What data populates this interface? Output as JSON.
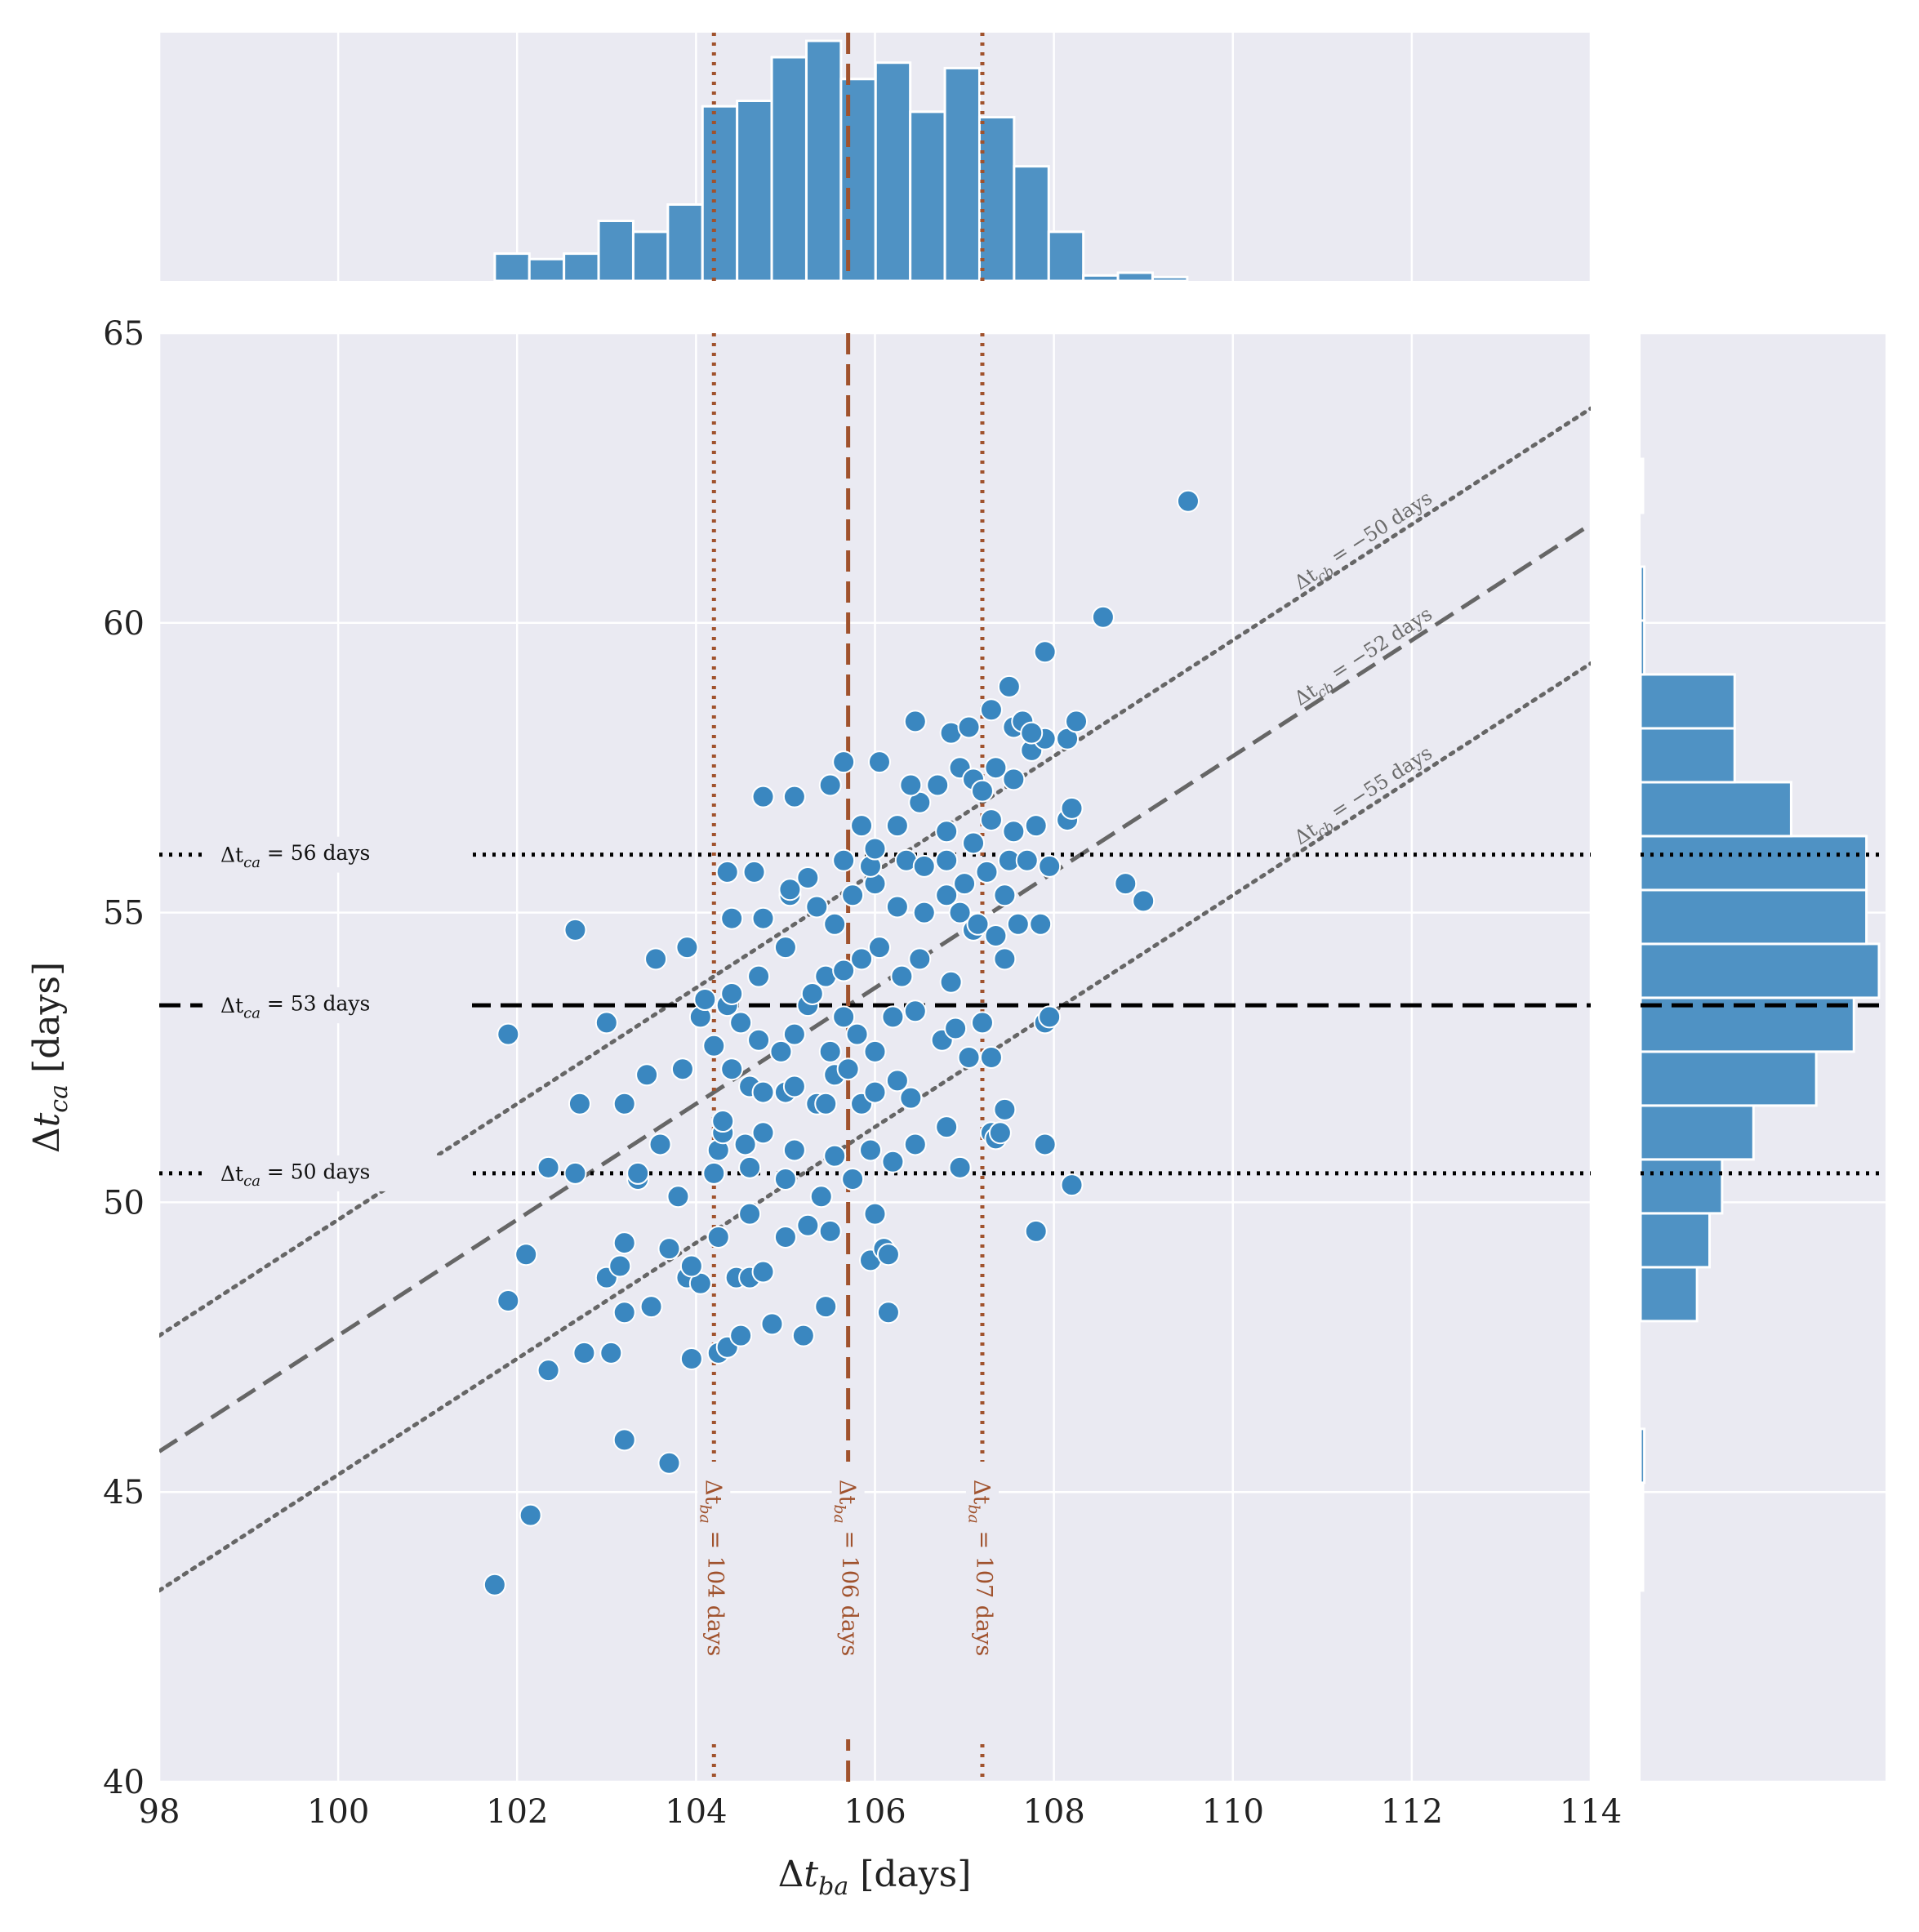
{
  "colors": {
    "background": "#eaeaf2",
    "grid": "#ffffff",
    "points": "#3a87c0",
    "bars": "#4f92c4",
    "vertical_lines": "#a0522d",
    "horizontal_lines": "#000000",
    "diagonal_lines": "#666666"
  },
  "chart_data": [
    {
      "type": "scatter",
      "xlabel": "Δt_ba [days]",
      "ylabel": "Δt_ca [days]",
      "xlim": [
        98,
        114
      ],
      "ylim": [
        40,
        65
      ],
      "x_ticks": [
        "98",
        "100",
        "102",
        "104",
        "106",
        "108",
        "110",
        "112",
        "114"
      ],
      "y_ticks": [
        "40",
        "45",
        "50",
        "55",
        "60",
        "65"
      ],
      "grid": true,
      "points": [
        [
          101.75,
          43.4
        ],
        [
          102.15,
          44.6
        ],
        [
          103.2,
          45.9
        ],
        [
          103.7,
          45.5
        ],
        [
          102.35,
          47.1
        ],
        [
          102.75,
          47.4
        ],
        [
          103.05,
          47.4
        ],
        [
          103.5,
          48.2
        ],
        [
          103.95,
          47.3
        ],
        [
          104.25,
          47.4
        ],
        [
          104.35,
          47.5
        ],
        [
          104.5,
          47.7
        ],
        [
          104.85,
          47.9
        ],
        [
          105.2,
          47.7
        ],
        [
          105.45,
          48.2
        ],
        [
          106.15,
          48.1
        ],
        [
          103.0,
          48.7
        ],
        [
          103.2,
          48.1
        ],
        [
          103.9,
          48.7
        ],
        [
          104.05,
          48.6
        ],
        [
          104.45,
          48.7
        ],
        [
          104.6,
          48.7
        ],
        [
          104.75,
          48.8
        ],
        [
          101.9,
          48.3
        ],
        [
          102.1,
          49.1
        ],
        [
          103.15,
          48.9
        ],
        [
          103.2,
          49.3
        ],
        [
          103.7,
          49.2
        ],
        [
          103.95,
          48.9
        ],
        [
          104.25,
          49.4
        ],
        [
          104.6,
          49.8
        ],
        [
          105.0,
          49.4
        ],
        [
          105.25,
          49.6
        ],
        [
          105.5,
          49.5
        ],
        [
          105.95,
          49.0
        ],
        [
          106.1,
          49.2
        ],
        [
          106.15,
          49.1
        ],
        [
          106.0,
          49.8
        ],
        [
          107.8,
          49.5
        ],
        [
          108.2,
          50.3
        ],
        [
          103.35,
          50.4
        ],
        [
          103.35,
          50.5
        ],
        [
          103.8,
          50.1
        ],
        [
          102.35,
          50.6
        ],
        [
          102.65,
          50.5
        ],
        [
          104.2,
          50.5
        ],
        [
          104.25,
          50.9
        ],
        [
          104.3,
          51.2
        ],
        [
          104.55,
          51.0
        ],
        [
          104.6,
          50.6
        ],
        [
          104.75,
          51.2
        ],
        [
          105.0,
          50.4
        ],
        [
          105.1,
          50.9
        ],
        [
          105.4,
          50.1
        ],
        [
          105.55,
          50.8
        ],
        [
          105.75,
          50.4
        ],
        [
          105.95,
          50.9
        ],
        [
          106.2,
          50.7
        ],
        [
          106.45,
          51.0
        ],
        [
          106.95,
          50.6
        ],
        [
          107.9,
          51.0
        ],
        [
          102.7,
          51.7
        ],
        [
          103.2,
          51.7
        ],
        [
          103.45,
          52.2
        ],
        [
          103.6,
          51.0
        ],
        [
          104.3,
          51.4
        ],
        [
          104.4,
          52.3
        ],
        [
          104.6,
          52.0
        ],
        [
          104.75,
          51.9
        ],
        [
          105.0,
          51.9
        ],
        [
          105.1,
          52.0
        ],
        [
          105.35,
          51.7
        ],
        [
          105.45,
          51.7
        ],
        [
          105.55,
          52.2
        ],
        [
          105.7,
          52.3
        ],
        [
          105.85,
          51.7
        ],
        [
          106.0,
          51.9
        ],
        [
          106.25,
          52.1
        ],
        [
          106.4,
          51.8
        ],
        [
          106.8,
          51.3
        ],
        [
          107.3,
          51.2
        ],
        [
          107.35,
          51.1
        ],
        [
          107.4,
          51.2
        ],
        [
          107.45,
          51.6
        ],
        [
          101.9,
          52.9
        ],
        [
          103.0,
          53.1
        ],
        [
          103.85,
          52.3
        ],
        [
          104.05,
          53.2
        ],
        [
          104.2,
          52.7
        ],
        [
          104.35,
          53.4
        ],
        [
          104.5,
          53.1
        ],
        [
          104.7,
          52.8
        ],
        [
          104.95,
          52.6
        ],
        [
          105.1,
          52.9
        ],
        [
          105.25,
          53.4
        ],
        [
          105.5,
          52.6
        ],
        [
          105.65,
          53.2
        ],
        [
          105.8,
          52.9
        ],
        [
          106.0,
          52.6
        ],
        [
          106.2,
          53.2
        ],
        [
          106.45,
          53.3
        ],
        [
          106.75,
          52.8
        ],
        [
          106.9,
          53.0
        ],
        [
          107.05,
          52.5
        ],
        [
          107.2,
          53.1
        ],
        [
          107.3,
          52.5
        ],
        [
          107.9,
          53.1
        ],
        [
          107.95,
          53.2
        ],
        [
          104.1,
          53.5
        ],
        [
          104.4,
          53.6
        ],
        [
          104.7,
          53.9
        ],
        [
          105.0,
          54.4
        ],
        [
          105.3,
          53.6
        ],
        [
          105.45,
          53.9
        ],
        [
          105.65,
          54.0
        ],
        [
          105.85,
          54.2
        ],
        [
          106.05,
          54.4
        ],
        [
          106.3,
          53.9
        ],
        [
          106.5,
          54.2
        ],
        [
          106.85,
          53.8
        ],
        [
          107.1,
          54.7
        ],
        [
          107.35,
          54.6
        ],
        [
          107.45,
          54.2
        ],
        [
          107.6,
          54.8
        ],
        [
          103.55,
          54.2
        ],
        [
          103.9,
          54.4
        ],
        [
          102.65,
          54.7
        ],
        [
          104.4,
          54.9
        ],
        [
          104.75,
          54.9
        ],
        [
          105.05,
          55.3
        ],
        [
          105.35,
          55.1
        ],
        [
          105.55,
          54.8
        ],
        [
          105.75,
          55.3
        ],
        [
          106.0,
          55.5
        ],
        [
          106.25,
          55.1
        ],
        [
          106.55,
          55.0
        ],
        [
          106.8,
          55.3
        ],
        [
          106.95,
          55.0
        ],
        [
          107.15,
          54.8
        ],
        [
          107.45,
          55.3
        ],
        [
          107.85,
          54.8
        ],
        [
          108.8,
          55.5
        ],
        [
          109.0,
          55.2
        ],
        [
          104.35,
          55.7
        ],
        [
          104.65,
          55.7
        ],
        [
          105.05,
          55.4
        ],
        [
          105.25,
          55.6
        ],
        [
          105.65,
          55.9
        ],
        [
          105.95,
          55.8
        ],
        [
          106.35,
          55.9
        ],
        [
          106.55,
          55.8
        ],
        [
          106.8,
          55.9
        ],
        [
          107.0,
          55.5
        ],
        [
          107.25,
          55.7
        ],
        [
          107.5,
          55.9
        ],
        [
          107.7,
          55.9
        ],
        [
          107.95,
          55.8
        ],
        [
          104.75,
          57.0
        ],
        [
          105.1,
          57.0
        ],
        [
          105.5,
          57.2
        ],
        [
          105.85,
          56.5
        ],
        [
          106.0,
          56.1
        ],
        [
          106.25,
          56.5
        ],
        [
          106.5,
          56.9
        ],
        [
          106.8,
          56.4
        ],
        [
          107.1,
          56.2
        ],
        [
          107.3,
          56.6
        ],
        [
          107.55,
          56.4
        ],
        [
          107.8,
          56.5
        ],
        [
          108.15,
          56.6
        ],
        [
          108.2,
          56.8
        ],
        [
          105.65,
          57.6
        ],
        [
          106.05,
          57.6
        ],
        [
          106.4,
          57.2
        ],
        [
          106.7,
          57.2
        ],
        [
          106.95,
          57.5
        ],
        [
          107.1,
          57.3
        ],
        [
          107.2,
          57.1
        ],
        [
          107.35,
          57.5
        ],
        [
          107.55,
          57.3
        ],
        [
          107.75,
          57.8
        ],
        [
          107.9,
          58.0
        ],
        [
          108.15,
          58.0
        ],
        [
          106.45,
          58.3
        ],
        [
          106.85,
          58.1
        ],
        [
          107.05,
          58.2
        ],
        [
          107.3,
          58.5
        ],
        [
          107.55,
          58.2
        ],
        [
          107.65,
          58.3
        ],
        [
          107.75,
          58.1
        ],
        [
          108.25,
          58.3
        ],
        [
          107.5,
          58.9
        ],
        [
          107.9,
          59.5
        ],
        [
          108.55,
          60.1
        ],
        [
          109.5,
          62.1
        ]
      ],
      "vertical_lines": [
        {
          "x": 104.2,
          "style": "dotted",
          "label": "Δt_ba = 104 days"
        },
        {
          "x": 105.7,
          "style": "dashed",
          "label": "Δt_ba = 106 days"
        },
        {
          "x": 107.2,
          "style": "dotted",
          "label": "Δt_ba = 107 days"
        }
      ],
      "horizontal_lines": [
        {
          "y": 56.0,
          "style": "dotted",
          "label": "Δt_ca = 56 days"
        },
        {
          "y": 53.4,
          "style": "dashed",
          "label": "Δt_ca = 53 days"
        },
        {
          "y": 50.5,
          "style": "dotted",
          "label": "Δt_ca = 50 days"
        }
      ],
      "diagonal_lines": [
        {
          "intercept": -50.3,
          "style": "dotted",
          "label": "Δt_cb = −50 days"
        },
        {
          "intercept": -52.3,
          "style": "dashed",
          "label": "Δt_cb = −52 days"
        },
        {
          "intercept": -54.7,
          "style": "dotted",
          "label": "Δt_cb = −55 days"
        }
      ]
    },
    {
      "type": "histogram",
      "axis": "x",
      "bin_width": 0.387,
      "bin_start": 101.75,
      "counts": [
        5,
        4,
        5,
        11,
        9,
        14,
        32,
        33,
        41,
        44,
        37,
        40,
        31,
        39,
        30,
        21,
        9,
        1,
        1.5,
        0.7
      ]
    },
    {
      "type": "histogram",
      "axis": "y",
      "bin_width": 0.93,
      "bin_start": 43.3,
      "counts": [
        0.3,
        0.3,
        0.6,
        0,
        0,
        9,
        11,
        13,
        18,
        28,
        34,
        38,
        36,
        36,
        24,
        15,
        15,
        0.6,
        0.6,
        0,
        0.3
      ]
    }
  ]
}
